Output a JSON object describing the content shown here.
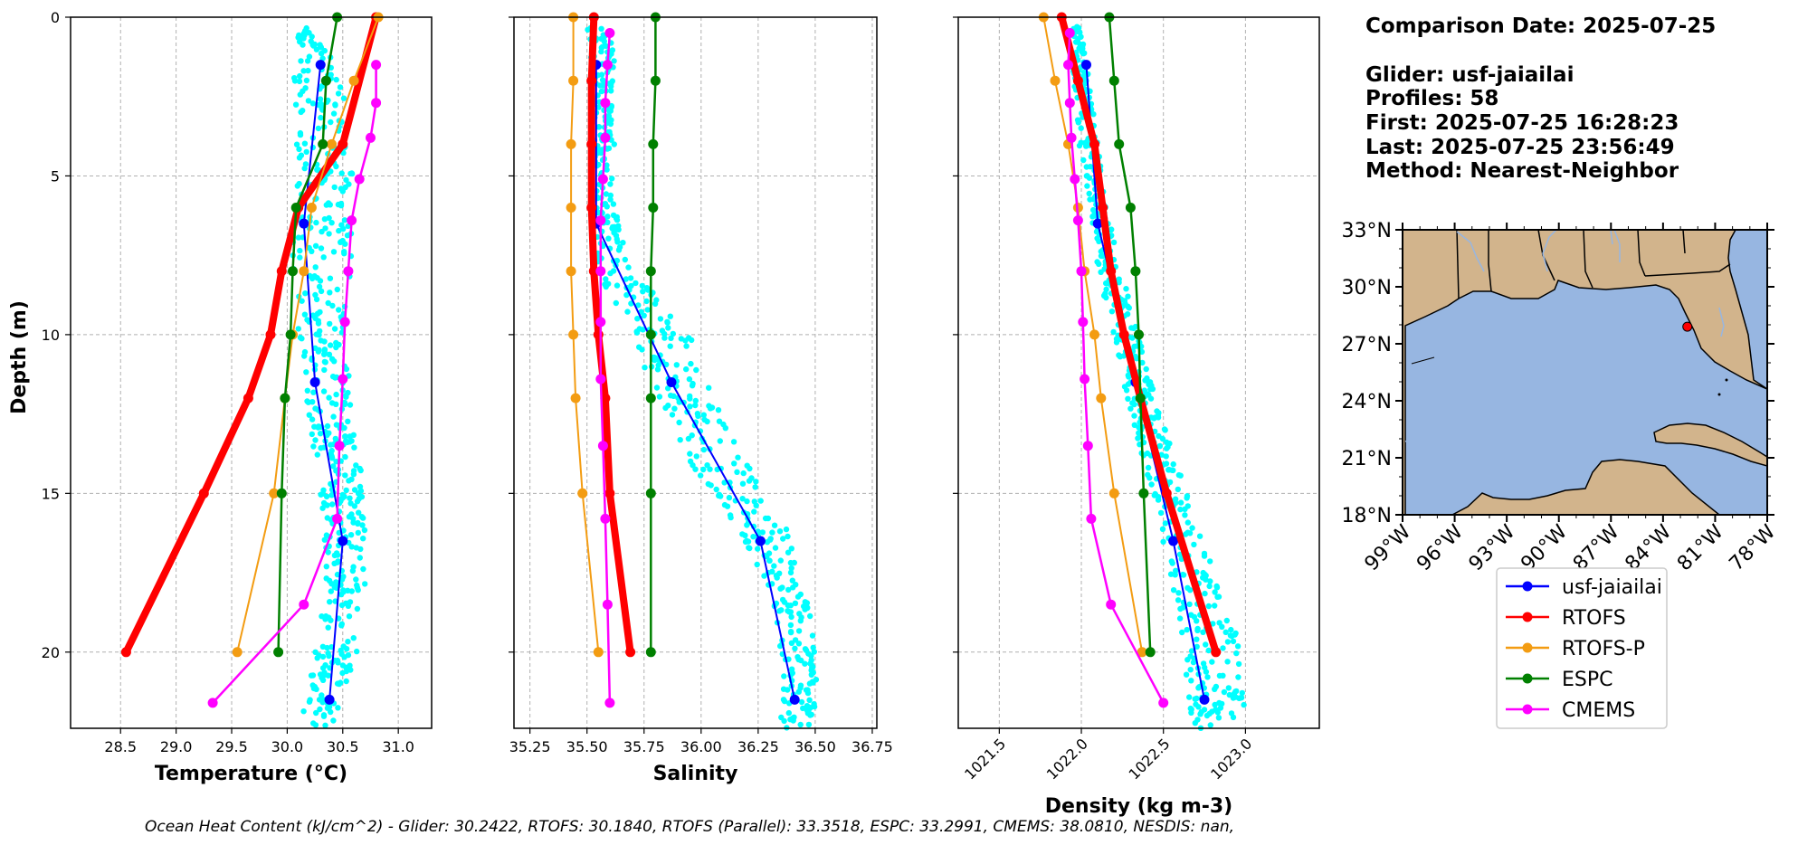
{
  "chart_data": [
    {
      "type": "line",
      "name": "temperature",
      "xlabel_html": "Temperature (°C)",
      "xlabel": "Temperature (°C)",
      "ylabel": "Depth (m)",
      "xlim": [
        28.05,
        31.3
      ],
      "ylim": [
        22.4,
        0
      ],
      "xticks": [
        "28.5",
        "29.0",
        "29.5",
        "30.0",
        "30.5",
        "31.0"
      ],
      "xtick_values": [
        28.5,
        29.0,
        29.5,
        30.0,
        30.5,
        31.0
      ],
      "yticks": [
        "0",
        "5",
        "10",
        "15",
        "20"
      ],
      "ytick_values": [
        0,
        5,
        10,
        15,
        20
      ],
      "scatter_band": {
        "depth": [
          0.3,
          2,
          5,
          7,
          9,
          11,
          13,
          15,
          17,
          19,
          21,
          22.4
        ],
        "min": [
          30.1,
          30.05,
          30.1,
          30.05,
          30.05,
          30.15,
          30.2,
          30.3,
          30.35,
          30.3,
          30.2,
          30.1
        ],
        "max": [
          30.25,
          30.5,
          30.6,
          30.6,
          30.55,
          30.55,
          30.6,
          30.7,
          30.7,
          30.7,
          30.55,
          30.4
        ]
      },
      "series": [
        {
          "name": "usf-jaiailai",
          "color": "#0000ff",
          "width": 2,
          "x": [
            30.3,
            30.15,
            30.25,
            30.5,
            30.38
          ],
          "y": [
            1.5,
            6.5,
            11.5,
            16.5,
            21.5
          ]
        },
        {
          "name": "RTOFS",
          "color": "#ff0000",
          "width": 8,
          "x": [
            30.8,
            30.5,
            30.1,
            29.95,
            29.85,
            29.65,
            29.25,
            28.55
          ],
          "y": [
            0,
            4,
            6,
            8,
            10,
            12,
            15,
            20
          ]
        },
        {
          "name": "RTOFS-P",
          "color": "#f39c12",
          "width": 2,
          "x": [
            30.82,
            30.6,
            30.4,
            30.22,
            30.15,
            30.05,
            29.98,
            29.88,
            29.55
          ],
          "y": [
            0,
            2,
            4,
            6,
            8,
            10,
            12,
            15,
            20
          ]
        },
        {
          "name": "ESPC",
          "color": "#008000",
          "width": 2.5,
          "x": [
            30.45,
            30.35,
            30.32,
            30.08,
            30.05,
            30.03,
            29.98,
            29.95,
            29.92
          ],
          "y": [
            0,
            2,
            4,
            6,
            8,
            10,
            12,
            15,
            20
          ]
        },
        {
          "name": "CMEMS",
          "color": "#ff00ff",
          "width": 2.5,
          "x": [
            30.8,
            30.8,
            30.75,
            30.65,
            30.58,
            30.55,
            30.52,
            30.5,
            30.47,
            30.45,
            30.15,
            29.33
          ],
          "y": [
            1.5,
            2.7,
            3.8,
            5.1,
            6.4,
            8.0,
            9.6,
            11.4,
            13.5,
            15.8,
            18.5,
            21.6
          ]
        }
      ]
    },
    {
      "type": "line",
      "name": "salinity",
      "xlabel": "Salinity",
      "xlim": [
        35.18,
        36.77
      ],
      "ylim": [
        22.4,
        0
      ],
      "xticks": [
        "35.25",
        "35.50",
        "35.75",
        "36.00",
        "36.25",
        "36.50",
        "36.75"
      ],
      "xtick_values": [
        35.25,
        35.5,
        35.75,
        36.0,
        36.25,
        36.5,
        36.75
      ],
      "yticks": [],
      "ytick_values": [
        0,
        5,
        10,
        15,
        20
      ],
      "scatter_band": {
        "depth": [
          0.3,
          2,
          4,
          6,
          8,
          9,
          10,
          11,
          12,
          14,
          16,
          18,
          20,
          22.4
        ],
        "min": [
          35.5,
          35.52,
          35.52,
          35.52,
          35.55,
          35.6,
          35.7,
          35.75,
          35.82,
          35.95,
          36.15,
          36.3,
          36.35,
          36.35
        ],
        "max": [
          35.62,
          35.62,
          35.62,
          35.62,
          35.7,
          35.85,
          35.95,
          36.0,
          36.05,
          36.2,
          36.38,
          36.45,
          36.52,
          36.5
        ]
      },
      "series": [
        {
          "name": "usf-jaiailai",
          "color": "#0000ff",
          "width": 2,
          "x": [
            35.54,
            35.54,
            35.87,
            36.26,
            36.41
          ],
          "y": [
            1.5,
            6.5,
            11.5,
            16.5,
            21.5
          ]
        },
        {
          "name": "RTOFS",
          "color": "#ff0000",
          "width": 8,
          "x": [
            35.53,
            35.52,
            35.52,
            35.52,
            35.53,
            35.55,
            35.58,
            35.6,
            35.69
          ],
          "y": [
            0,
            2,
            4,
            6,
            8,
            10,
            12,
            15,
            20
          ]
        },
        {
          "name": "RTOFS-P",
          "color": "#f39c12",
          "width": 2,
          "x": [
            35.44,
            35.44,
            35.43,
            35.43,
            35.43,
            35.44,
            35.45,
            35.48,
            35.55
          ],
          "y": [
            0,
            2,
            4,
            6,
            8,
            10,
            12,
            15,
            20
          ]
        },
        {
          "name": "ESPC",
          "color": "#008000",
          "width": 2.5,
          "x": [
            35.8,
            35.8,
            35.79,
            35.79,
            35.78,
            35.78,
            35.78,
            35.78,
            35.78
          ],
          "y": [
            0,
            2,
            4,
            6,
            8,
            10,
            12,
            15,
            20
          ]
        },
        {
          "name": "CMEMS",
          "color": "#ff00ff",
          "width": 2.5,
          "x": [
            35.6,
            35.59,
            35.58,
            35.58,
            35.57,
            35.56,
            35.56,
            35.56,
            35.56,
            35.57,
            35.58,
            35.59,
            35.6
          ],
          "y": [
            0.5,
            1.5,
            2.7,
            3.8,
            5.1,
            6.4,
            8.0,
            9.6,
            11.4,
            13.5,
            15.8,
            18.5,
            21.6
          ]
        }
      ]
    },
    {
      "type": "line",
      "name": "density",
      "xlabel": "Density (kg m-3)",
      "xlim": [
        1021.25,
        1023.45
      ],
      "ylim": [
        22.4,
        0
      ],
      "xticks": [
        "1021.5",
        "1022.0",
        "1022.5",
        "1023.0"
      ],
      "xtick_values": [
        1021.5,
        1022.0,
        1022.5,
        1023.0
      ],
      "yticks": [],
      "ytick_values": [
        0,
        5,
        10,
        15,
        20
      ],
      "scatter_band": {
        "depth": [
          0.3,
          2,
          4,
          6,
          8,
          10,
          12,
          14,
          16,
          18,
          20,
          22.4
        ],
        "min": [
          1021.95,
          1021.95,
          1021.98,
          1022.05,
          1022.1,
          1022.18,
          1022.28,
          1022.38,
          1022.48,
          1022.55,
          1022.62,
          1022.68
        ],
        "max": [
          1022.0,
          1022.05,
          1022.1,
          1022.15,
          1022.25,
          1022.35,
          1022.45,
          1022.58,
          1022.7,
          1022.85,
          1022.98,
          1023.0
        ]
      },
      "series": [
        {
          "name": "usf-jaiailai",
          "color": "#0000ff",
          "width": 2,
          "x": [
            1022.03,
            1022.1,
            1022.33,
            1022.56,
            1022.75
          ],
          "y": [
            1.5,
            6.5,
            11.5,
            16.5,
            21.5
          ]
        },
        {
          "name": "RTOFS",
          "color": "#ff0000",
          "width": 8,
          "x": [
            1021.88,
            1021.98,
            1022.08,
            1022.13,
            1022.18,
            1022.26,
            1022.36,
            1022.52,
            1022.82
          ],
          "y": [
            0,
            2,
            4,
            6,
            8,
            10,
            12,
            15,
            20
          ]
        },
        {
          "name": "RTOFS-P",
          "color": "#f39c12",
          "width": 2,
          "x": [
            1021.77,
            1021.84,
            1021.92,
            1021.98,
            1022.02,
            1022.08,
            1022.12,
            1022.2,
            1022.37
          ],
          "y": [
            0,
            2,
            4,
            6,
            8,
            10,
            12,
            15,
            20
          ]
        },
        {
          "name": "ESPC",
          "color": "#008000",
          "width": 2.5,
          "x": [
            1022.17,
            1022.2,
            1022.23,
            1022.3,
            1022.33,
            1022.35,
            1022.36,
            1022.38,
            1022.42
          ],
          "y": [
            0,
            2,
            4,
            6,
            8,
            10,
            12,
            15,
            20
          ]
        },
        {
          "name": "CMEMS",
          "color": "#ff00ff",
          "width": 2.5,
          "x": [
            1021.93,
            1021.92,
            1021.93,
            1021.94,
            1021.96,
            1021.98,
            1022.0,
            1022.01,
            1022.02,
            1022.04,
            1022.06,
            1022.18,
            1022.5
          ],
          "y": [
            0.5,
            1.5,
            2.7,
            3.8,
            5.1,
            6.4,
            8.0,
            9.6,
            11.4,
            13.5,
            15.8,
            18.5,
            21.6
          ]
        }
      ]
    }
  ],
  "info": {
    "comparison_date": "Comparison Date: 2025-07-25",
    "glider": "Glider: usf-jaiailai",
    "profiles": "Profiles: 58",
    "first": "First: 2025-07-25 16:28:23",
    "last": "Last: 2025-07-25 23:56:49",
    "method": "Method: Nearest-Neighbor"
  },
  "map": {
    "lat_range": [
      18,
      33
    ],
    "lon_range": [
      -99,
      -78
    ],
    "lat_labels": [
      "33°N",
      "30°N",
      "27°N",
      "24°N",
      "21°N",
      "18°N"
    ],
    "lat_values": [
      33,
      30,
      27,
      24,
      21,
      18
    ],
    "lon_labels": [
      "99°W",
      "96°W",
      "93°W",
      "90°W",
      "87°W",
      "84°W",
      "81°W",
      "78°W"
    ],
    "lon_values": [
      -99,
      -96,
      -93,
      -90,
      -87,
      -84,
      -81,
      -78
    ],
    "glider_position": {
      "lon": -82.6,
      "lat": 27.9
    },
    "colors": {
      "ocean": "#97b6e1",
      "land": "#d2b48c",
      "marker": "#ff0000"
    }
  },
  "legend": [
    {
      "label": "usf-jaiailai",
      "color": "#0000ff"
    },
    {
      "label": "RTOFS",
      "color": "#ff0000"
    },
    {
      "label": "RTOFS-P",
      "color": "#f39c12"
    },
    {
      "label": "ESPC",
      "color": "#008000"
    },
    {
      "label": "CMEMS",
      "color": "#ff00ff"
    }
  ],
  "footer": "Ocean Heat Content (kJ/cm^2) - Glider: 30.2422,  RTOFS: 30.1840,  RTOFS (Parallel): 33.3518,  ESPC: 33.2991,  CMEMS: 38.0810,  NESDIS: nan,"
}
